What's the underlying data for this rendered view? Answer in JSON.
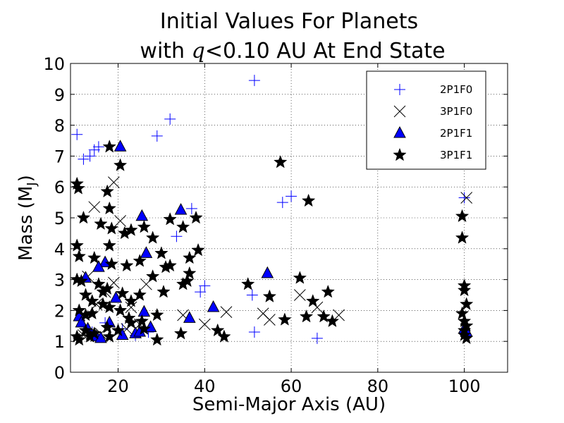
{
  "chart_data": {
    "type": "scatter",
    "title_line1": "Initial Values For Planets",
    "title_line2": "with q<0.10 AU At End State",
    "title_q": "q",
    "title_rest": "<0.10 AU At End State",
    "title_with": "with ",
    "xlabel": "Semi-Major Axis (AU)",
    "ylabel": "Mass (M",
    "ylabel_sub": "J",
    "ylabel_close": ")",
    "xlim": [
      9,
      110
    ],
    "ylim": [
      0,
      10
    ],
    "xticks": [
      20,
      40,
      60,
      80,
      100
    ],
    "yticks": [
      0,
      1,
      2,
      3,
      4,
      5,
      6,
      7,
      8,
      9,
      10
    ],
    "grid": true,
    "legend_position": "top-right",
    "colors": {
      "blue": "#0000ff",
      "black": "#000000"
    },
    "series": [
      {
        "name": "2P1F0",
        "marker": "plus",
        "color": "#0000ff",
        "points": [
          [
            10.5,
            7.7
          ],
          [
            12,
            6.9
          ],
          [
            13.5,
            7.0
          ],
          [
            14.5,
            7.2
          ],
          [
            15.5,
            7.3
          ],
          [
            29,
            7.65
          ],
          [
            32,
            8.2
          ],
          [
            51.5,
            9.45
          ],
          [
            33.5,
            4.4
          ],
          [
            37,
            5.3
          ],
          [
            39,
            2.6
          ],
          [
            40,
            2.8
          ],
          [
            51,
            2.5
          ],
          [
            51.5,
            1.3
          ],
          [
            58,
            5.5
          ],
          [
            60,
            5.7
          ],
          [
            66,
            1.1
          ],
          [
            100,
            5.65
          ],
          [
            12,
            1.5
          ],
          [
            14,
            1.3
          ],
          [
            17,
            1.6
          ],
          [
            21,
            1.4
          ],
          [
            24,
            1.2
          ],
          [
            27,
            1.3
          ]
        ]
      },
      {
        "name": "3P1F0",
        "marker": "x",
        "color": "#000000",
        "points": [
          [
            14.5,
            5.35
          ],
          [
            19,
            6.15
          ],
          [
            20.5,
            4.9
          ],
          [
            13,
            3.1
          ],
          [
            15,
            2.2
          ],
          [
            17,
            2.6
          ],
          [
            19,
            2.9
          ],
          [
            23,
            2.1
          ],
          [
            25,
            1.55
          ],
          [
            26.5,
            2.85
          ],
          [
            35,
            1.85
          ],
          [
            40,
            1.55
          ],
          [
            45,
            1.95
          ],
          [
            53.5,
            1.9
          ],
          [
            55,
            1.7
          ],
          [
            62,
            2.5
          ],
          [
            66,
            2.1
          ],
          [
            71,
            1.85
          ],
          [
            100.5,
            5.65
          ],
          [
            12,
            1.2
          ],
          [
            16,
            1.25
          ],
          [
            22,
            1.4
          ]
        ]
      },
      {
        "name": "2P1F1",
        "marker": "triangle",
        "color": "#0000ff",
        "points": [
          [
            20.5,
            7.3
          ],
          [
            25.5,
            5.05
          ],
          [
            34.5,
            5.25
          ],
          [
            26.5,
            3.85
          ],
          [
            17,
            3.55
          ],
          [
            15.5,
            3.4
          ],
          [
            12.5,
            3.05
          ],
          [
            19.5,
            2.4
          ],
          [
            26,
            1.95
          ],
          [
            36.5,
            1.75
          ],
          [
            42,
            2.1
          ],
          [
            54.5,
            3.2
          ],
          [
            11,
            1.8
          ],
          [
            11.5,
            1.6
          ],
          [
            13,
            1.4
          ],
          [
            14,
            1.2
          ],
          [
            15,
            1.15
          ],
          [
            16,
            1.1
          ],
          [
            18,
            1.6
          ],
          [
            21,
            1.2
          ],
          [
            24,
            1.25
          ],
          [
            25,
            1.3
          ],
          [
            27.5,
            1.45
          ],
          [
            100,
            1.4
          ],
          [
            100.5,
            1.3
          ]
        ]
      },
      {
        "name": "3P1F1",
        "marker": "star",
        "color": "#000000",
        "points": [
          [
            18,
            7.3
          ],
          [
            20.5,
            6.7
          ],
          [
            10.5,
            6.1
          ],
          [
            10.8,
            5.95
          ],
          [
            17.5,
            5.85
          ],
          [
            12,
            5.0
          ],
          [
            18,
            5.3
          ],
          [
            16,
            4.8
          ],
          [
            18.5,
            4.65
          ],
          [
            21.5,
            4.5
          ],
          [
            23,
            4.6
          ],
          [
            26,
            4.7
          ],
          [
            28,
            4.35
          ],
          [
            32,
            4.95
          ],
          [
            35,
            4.7
          ],
          [
            38,
            5.0
          ],
          [
            10.5,
            4.1
          ],
          [
            18,
            4.1
          ],
          [
            11,
            3.75
          ],
          [
            14.5,
            3.7
          ],
          [
            18.5,
            3.5
          ],
          [
            22,
            3.45
          ],
          [
            25,
            3.6
          ],
          [
            30,
            3.85
          ],
          [
            31,
            3.4
          ],
          [
            32,
            3.45
          ],
          [
            36.5,
            3.7
          ],
          [
            38.5,
            3.95
          ],
          [
            36.5,
            3.2
          ],
          [
            28,
            3.1
          ],
          [
            10.5,
            3.0
          ],
          [
            11.5,
            2.95
          ],
          [
            12.5,
            2.5
          ],
          [
            14,
            2.3
          ],
          [
            15.5,
            2.85
          ],
          [
            16.5,
            2.6
          ],
          [
            17.5,
            2.7
          ],
          [
            21,
            2.55
          ],
          [
            23,
            2.3
          ],
          [
            25,
            2.5
          ],
          [
            30.5,
            2.6
          ],
          [
            35,
            2.85
          ],
          [
            36,
            2.95
          ],
          [
            11,
            2.0
          ],
          [
            12.5,
            1.85
          ],
          [
            14,
            1.9
          ],
          [
            16.5,
            2.2
          ],
          [
            18,
            2.1
          ],
          [
            20.5,
            2.0
          ],
          [
            22.5,
            1.75
          ],
          [
            25.5,
            1.65
          ],
          [
            29,
            1.85
          ],
          [
            10.5,
            1.15
          ],
          [
            11,
            1.05
          ],
          [
            12.5,
            1.35
          ],
          [
            13.5,
            1.15
          ],
          [
            14.5,
            1.25
          ],
          [
            17.5,
            1.45
          ],
          [
            18,
            1.15
          ],
          [
            20,
            1.35
          ],
          [
            23,
            1.6
          ],
          [
            26,
            1.4
          ],
          [
            29,
            1.05
          ],
          [
            34.5,
            1.25
          ],
          [
            43,
            1.35
          ],
          [
            44.5,
            1.15
          ],
          [
            50,
            2.85
          ],
          [
            55,
            2.45
          ],
          [
            57.5,
            6.8
          ],
          [
            58.5,
            1.7
          ],
          [
            62,
            3.05
          ],
          [
            63.5,
            1.8
          ],
          [
            64,
            5.55
          ],
          [
            65,
            2.3
          ],
          [
            67.5,
            1.8
          ],
          [
            68.5,
            2.6
          ],
          [
            69.5,
            1.65
          ],
          [
            99.5,
            5.05
          ],
          [
            99.5,
            4.35
          ],
          [
            100,
            2.8
          ],
          [
            100,
            2.65
          ],
          [
            100.5,
            2.2
          ],
          [
            99.5,
            1.9
          ],
          [
            100,
            1.65
          ],
          [
            100.5,
            1.5
          ],
          [
            100,
            1.35
          ],
          [
            100,
            1.2
          ],
          [
            100.5,
            1.1
          ]
        ]
      }
    ]
  }
}
